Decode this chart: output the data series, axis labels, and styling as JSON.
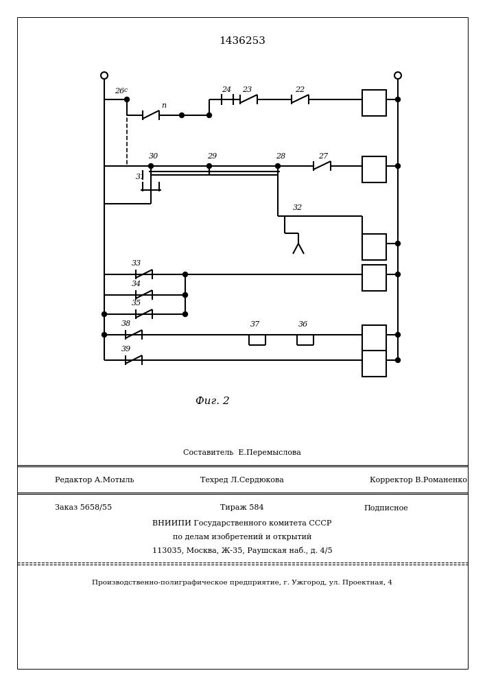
{
  "title": "1436253",
  "background": "#ffffff",
  "line_color": "#000000",
  "lw": 1.5,
  "footer": {
    "compositor": "Составитель  Е.Перемыслова",
    "editor": "Редактор А.Мотыль",
    "techred": "Техред Л.Сердюкова",
    "corrector": "Корректор В.Романенко",
    "order": "Заказ 5658/55",
    "tirage": "Тираж 584",
    "podpisnoe": "Подписное",
    "vniip": "ВНИИПИ Государственного комитета СССР",
    "podelam": "по делам изобретений и открытий",
    "address": "113035, Москва, Ж-35, Раушская наб., д. 4/5",
    "factory": "Производственно-полиграфическое предприятие, г. Ужгород, ул. Проектная, 4"
  }
}
